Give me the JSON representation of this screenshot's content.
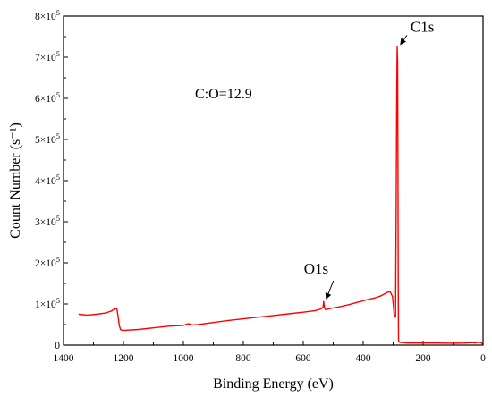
{
  "chart_data": {
    "type": "line",
    "title": "",
    "xlabel": "Binding Energy (eV)",
    "ylabel": "Count Number (s⁻¹)",
    "xlim": [
      1400,
      0
    ],
    "x_reversed": true,
    "ylim": [
      0,
      800000
    ],
    "x_ticks": [
      1400,
      1200,
      1000,
      800,
      600,
      400,
      200,
      0
    ],
    "x_tick_labels": [
      "1400",
      "1200",
      "1000",
      "800",
      "600",
      "400",
      "200",
      "0"
    ],
    "y_ticks": [
      0,
      100000,
      200000,
      300000,
      400000,
      500000,
      600000,
      700000,
      800000
    ],
    "y_tick_labels": [
      {
        "mantissa": "0",
        "exponent": ""
      },
      {
        "mantissa": "1×10",
        "exponent": "5"
      },
      {
        "mantissa": "2×10",
        "exponent": "5"
      },
      {
        "mantissa": "3×10",
        "exponent": "5"
      },
      {
        "mantissa": "4×10",
        "exponent": "5"
      },
      {
        "mantissa": "5×10",
        "exponent": "5"
      },
      {
        "mantissa": "6×10",
        "exponent": "5"
      },
      {
        "mantissa": "7×10",
        "exponent": "5"
      },
      {
        "mantissa": "8×10",
        "exponent": "5"
      }
    ],
    "grid": false,
    "legend": "none",
    "text_annotation": "C:O=12.9",
    "peak_labels": [
      {
        "text": "C1s",
        "x": 284,
        "y": 725000
      },
      {
        "text": "O1s",
        "x": 532,
        "y": 100000
      }
    ],
    "series": [
      {
        "color": "#ff0000",
        "x": [
          1350,
          1320,
          1290,
          1260,
          1240,
          1228,
          1222,
          1218,
          1214,
          1210,
          1205,
          1195,
          1150,
          1100,
          1050,
          1000,
          985,
          978,
          970,
          950,
          900,
          850,
          800,
          750,
          700,
          650,
          600,
          560,
          540,
          534,
          532,
          529,
          525,
          510,
          480,
          450,
          420,
          390,
          360,
          340,
          320,
          310,
          302,
          296,
          292,
          290,
          288,
          286.5,
          285,
          284,
          283,
          282,
          280,
          270,
          250,
          200,
          150,
          100,
          60,
          40,
          25,
          15,
          8,
          3,
          0
        ],
        "y": [
          75000,
          73000,
          75000,
          78000,
          83000,
          89000,
          88000,
          70000,
          48000,
          38000,
          36000,
          36000,
          38000,
          42000,
          46000,
          48000,
          52000,
          51000,
          49000,
          50000,
          55000,
          60000,
          64000,
          68000,
          72000,
          76000,
          80000,
          84000,
          88000,
          92000,
          106000,
          90000,
          86000,
          89000,
          93000,
          98000,
          104000,
          110000,
          115000,
          120000,
          128000,
          130000,
          118000,
          72000,
          68000,
          300000,
          600000,
          725000,
          690000,
          420000,
          150000,
          12000,
          7000,
          6000,
          5000,
          5500,
          5000,
          4500,
          5000,
          6000,
          5500,
          7000,
          6000,
          4000,
          2000
        ]
      }
    ]
  }
}
